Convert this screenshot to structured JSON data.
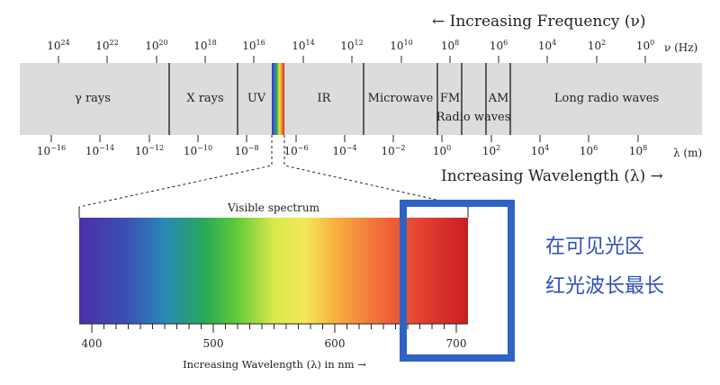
{
  "top_axis": {
    "title": "← Increasing Frequency (ν)",
    "unit": "ν (Hz)",
    "ticks": [
      {
        "base": "10",
        "exp": "24"
      },
      {
        "base": "10",
        "exp": "22"
      },
      {
        "base": "10",
        "exp": "20"
      },
      {
        "base": "10",
        "exp": "18"
      },
      {
        "base": "10",
        "exp": "16"
      },
      {
        "base": "10",
        "exp": "14"
      },
      {
        "base": "10",
        "exp": "12"
      },
      {
        "base": "10",
        "exp": "10"
      },
      {
        "base": "10",
        "exp": "8"
      },
      {
        "base": "10",
        "exp": "6"
      },
      {
        "base": "10",
        "exp": "4"
      },
      {
        "base": "10",
        "exp": "2"
      },
      {
        "base": "10",
        "exp": "0"
      }
    ]
  },
  "bottom_axis": {
    "title": "Increasing Wavelength (λ) →",
    "unit": "λ (m)",
    "ticks": [
      {
        "base": "10",
        "exp": "−16"
      },
      {
        "base": "10",
        "exp": "−14"
      },
      {
        "base": "10",
        "exp": "−12"
      },
      {
        "base": "10",
        "exp": "−10"
      },
      {
        "base": "10",
        "exp": "−8"
      },
      {
        "base": "10",
        "exp": "−6"
      },
      {
        "base": "10",
        "exp": "−4"
      },
      {
        "base": "10",
        "exp": "−2"
      },
      {
        "base": "10",
        "exp": "0"
      },
      {
        "base": "10",
        "exp": "2"
      },
      {
        "base": "10",
        "exp": "4"
      },
      {
        "base": "10",
        "exp": "6"
      },
      {
        "base": "10",
        "exp": "8"
      }
    ]
  },
  "bands": {
    "gamma": "γ rays",
    "xray": "X rays",
    "uv": "UV",
    "ir": "IR",
    "microwave": "Microwave",
    "fm": "FM",
    "am": "AM",
    "radio": "Radio waves",
    "long_radio": "Long radio waves"
  },
  "visible": {
    "title": "Visible spectrum",
    "ticks": [
      "400",
      "500",
      "600",
      "700"
    ],
    "axis_title": "Increasing Wavelength (λ) in nm →"
  },
  "callout": {
    "line1": "在可见光区",
    "line2": "红光波长最长",
    "color": "#2f4fb8",
    "box_color": "#2e63c4"
  }
}
